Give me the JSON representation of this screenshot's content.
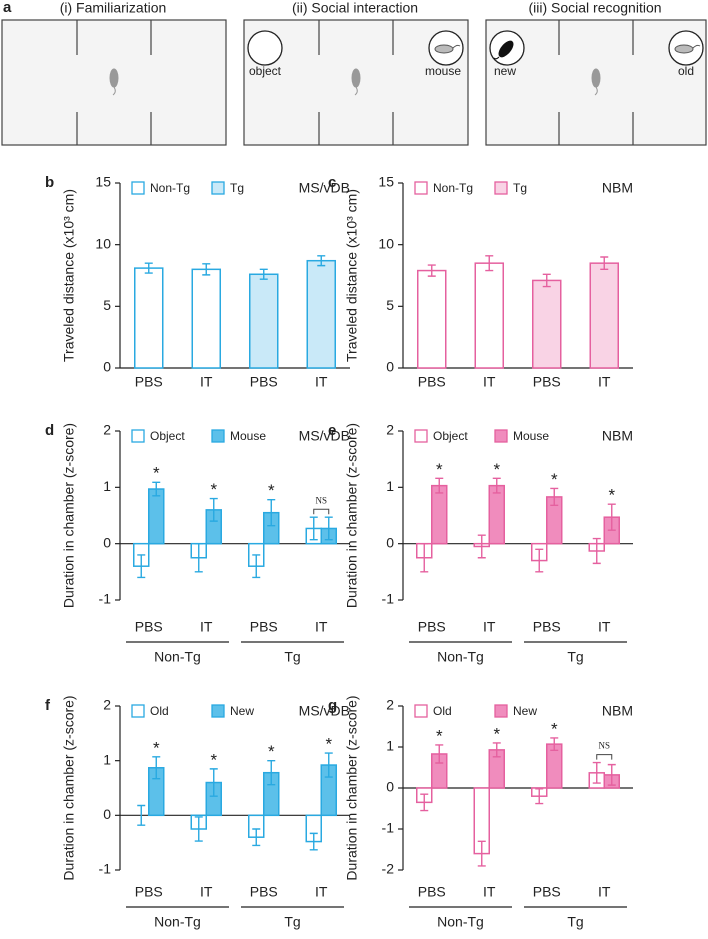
{
  "panel_a": {
    "label": "a",
    "panels": [
      {
        "title": "(i) Familiarization"
      },
      {
        "title": "(ii) Social interaction",
        "left": "object",
        "right": "mouse"
      },
      {
        "title": "(iii) Social recognition",
        "left": "new",
        "right": "old"
      }
    ]
  },
  "chart_data": [
    {
      "type": "bar",
      "panel": "b",
      "region": "MS/vDB",
      "ylabel": "Traveled distance (x10³ cm)",
      "categories": [
        "PBS",
        "IT",
        "PBS",
        "IT"
      ],
      "ylim": [
        0,
        15
      ],
      "yticks": [
        0,
        5,
        10,
        15
      ],
      "series": [
        {
          "name": "Non-Tg",
          "color": "#29a9e1",
          "fill": "#ffffff",
          "values": [
            8.1,
            8.0,
            null,
            null
          ],
          "errors": [
            0.4,
            0.45,
            null,
            null
          ]
        },
        {
          "name": "Tg",
          "color": "#29a9e1",
          "fill": "#c9e9f8",
          "values": [
            null,
            null,
            7.6,
            8.7
          ],
          "errors": [
            null,
            null,
            0.4,
            0.4
          ]
        }
      ]
    },
    {
      "type": "bar",
      "panel": "c",
      "region": "NBM",
      "ylabel": "Traveled distance (x10³ cm)",
      "categories": [
        "PBS",
        "IT",
        "PBS",
        "IT"
      ],
      "ylim": [
        0,
        15
      ],
      "yticks": [
        0,
        5,
        10,
        15
      ],
      "series": [
        {
          "name": "Non-Tg",
          "color": "#e5609f",
          "fill": "#ffffff",
          "values": [
            7.9,
            8.5,
            null,
            null
          ],
          "errors": [
            0.45,
            0.6,
            null,
            null
          ]
        },
        {
          "name": "Tg",
          "color": "#e5609f",
          "fill": "#f9d3e5",
          "values": [
            null,
            null,
            7.1,
            8.5
          ],
          "errors": [
            null,
            null,
            0.5,
            0.5
          ]
        }
      ]
    },
    {
      "type": "bar",
      "panel": "d",
      "region": "MS/vDB",
      "ylabel": "Duration in chamber (z-score)",
      "categories": [
        "PBS",
        "IT",
        "PBS",
        "IT"
      ],
      "groups": [
        "Non-Tg",
        "Tg"
      ],
      "ylim": [
        -1,
        2
      ],
      "yticks": [
        -1,
        0,
        1,
        2
      ],
      "series": [
        {
          "name": "Object",
          "color": "#29a9e1",
          "fill": "#ffffff",
          "values": [
            -0.4,
            -0.25,
            -0.4,
            0.27
          ],
          "errors": [
            0.2,
            0.25,
            0.2,
            0.2
          ]
        },
        {
          "name": "Mouse",
          "color": "#29a9e1",
          "fill": "#5cc0ea",
          "values": [
            0.97,
            0.6,
            0.55,
            0.27
          ],
          "errors": [
            0.12,
            0.2,
            0.23,
            0.2
          ]
        }
      ],
      "annotations": [
        "*",
        "*",
        "*",
        "NS"
      ]
    },
    {
      "type": "bar",
      "panel": "e",
      "region": "NBM",
      "ylabel": "Duration in chamber (z-score)",
      "categories": [
        "PBS",
        "IT",
        "PBS",
        "IT"
      ],
      "groups": [
        "Non-Tg",
        "Tg"
      ],
      "ylim": [
        -1,
        2
      ],
      "yticks": [
        -1,
        0,
        1,
        2
      ],
      "series": [
        {
          "name": "Object",
          "color": "#e5609f",
          "fill": "#ffffff",
          "values": [
            -0.25,
            -0.05,
            -0.3,
            -0.13
          ],
          "errors": [
            0.25,
            0.2,
            0.2,
            0.22
          ]
        },
        {
          "name": "Mouse",
          "color": "#e5609f",
          "fill": "#f08cbd",
          "values": [
            1.03,
            1.03,
            0.83,
            0.47
          ],
          "errors": [
            0.13,
            0.13,
            0.15,
            0.23
          ]
        }
      ],
      "annotations": [
        "*",
        "*",
        "*",
        "*"
      ]
    },
    {
      "type": "bar",
      "panel": "f",
      "region": "MS/vDB",
      "ylabel": "Duration in chamber (z-score)",
      "categories": [
        "PBS",
        "IT",
        "PBS",
        "IT"
      ],
      "groups": [
        "Non-Tg",
        "Tg"
      ],
      "ylim": [
        -1,
        2
      ],
      "yticks": [
        -1,
        0,
        1,
        2
      ],
      "series": [
        {
          "name": "Old",
          "color": "#29a9e1",
          "fill": "#ffffff",
          "values": [
            0.0,
            -0.25,
            -0.4,
            -0.48
          ],
          "errors": [
            0.18,
            0.22,
            0.15,
            0.15
          ]
        },
        {
          "name": "New",
          "color": "#29a9e1",
          "fill": "#5cc0ea",
          "values": [
            0.87,
            0.6,
            0.78,
            0.92
          ],
          "errors": [
            0.2,
            0.25,
            0.22,
            0.22
          ]
        }
      ],
      "annotations": [
        "*",
        "*",
        "*",
        "*"
      ]
    },
    {
      "type": "bar",
      "panel": "g",
      "region": "NBM",
      "ylabel": "Duration in chamber (z-score)",
      "categories": [
        "PBS",
        "IT",
        "PBS",
        "IT"
      ],
      "groups": [
        "Non-Tg",
        "Tg"
      ],
      "ylim": [
        -2,
        2
      ],
      "yticks": [
        -2,
        -1,
        0,
        1,
        2
      ],
      "series": [
        {
          "name": "Old",
          "color": "#e5609f",
          "fill": "#ffffff",
          "values": [
            -0.35,
            -1.6,
            -0.2,
            0.37
          ],
          "errors": [
            0.2,
            0.3,
            0.18,
            0.25
          ]
        },
        {
          "name": "New",
          "color": "#e5609f",
          "fill": "#f08cbd",
          "values": [
            0.83,
            0.93,
            1.07,
            0.32
          ],
          "errors": [
            0.22,
            0.17,
            0.15,
            0.25
          ]
        }
      ],
      "annotations": [
        "*",
        "*",
        "*",
        "NS"
      ]
    }
  ]
}
